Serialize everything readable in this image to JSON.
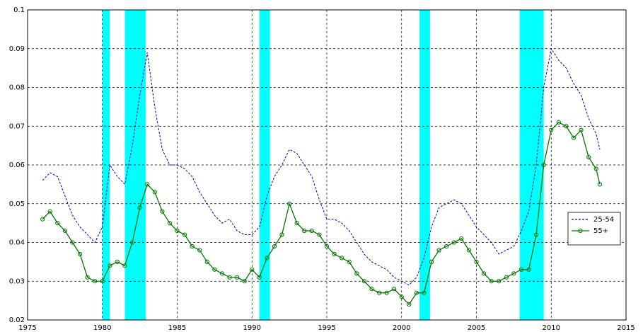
{
  "chart_data": {
    "type": "line",
    "x": [
      1976,
      1976.5,
      1977,
      1977.5,
      1978,
      1978.5,
      1979,
      1979.5,
      1980,
      1980.5,
      1981,
      1981.5,
      1982,
      1982.5,
      1983,
      1983.5,
      1984,
      1984.5,
      1985,
      1985.5,
      1986,
      1986.5,
      1987,
      1987.5,
      1988,
      1988.5,
      1989,
      1989.5,
      1990,
      1990.5,
      1991,
      1991.5,
      1992,
      1992.5,
      1993,
      1993.5,
      1994,
      1994.5,
      1995,
      1995.5,
      1996,
      1996.5,
      1997,
      1997.5,
      1998,
      1998.5,
      1999,
      1999.5,
      2000,
      2000.5,
      2001,
      2001.5,
      2002,
      2002.5,
      2003,
      2003.5,
      2004,
      2004.5,
      2005,
      2005.5,
      2006,
      2006.5,
      2007,
      2007.5,
      2008,
      2008.5,
      2009,
      2009.5,
      2010,
      2010.5,
      2011,
      2011.5,
      2012,
      2012.5,
      2013,
      2013.25
    ],
    "series": [
      {
        "name": "25-54",
        "color": "#0000cc",
        "style": "dashed",
        "marker": false,
        "values": [
          0.056,
          0.058,
          0.057,
          0.052,
          0.047,
          0.044,
          0.042,
          0.04,
          0.044,
          0.06,
          0.057,
          0.055,
          0.065,
          0.078,
          0.089,
          0.075,
          0.064,
          0.06,
          0.06,
          0.059,
          0.057,
          0.053,
          0.05,
          0.047,
          0.045,
          0.046,
          0.043,
          0.042,
          0.042,
          0.044,
          0.052,
          0.057,
          0.06,
          0.064,
          0.063,
          0.06,
          0.057,
          0.051,
          0.046,
          0.046,
          0.045,
          0.043,
          0.04,
          0.037,
          0.035,
          0.034,
          0.033,
          0.031,
          0.03,
          0.029,
          0.031,
          0.036,
          0.044,
          0.049,
          0.05,
          0.051,
          0.05,
          0.047,
          0.044,
          0.042,
          0.04,
          0.037,
          0.038,
          0.039,
          0.043,
          0.048,
          0.06,
          0.08,
          0.09,
          0.087,
          0.085,
          0.081,
          0.078,
          0.072,
          0.068,
          0.064
        ]
      },
      {
        "name": "55+",
        "color": "#007700",
        "style": "solid",
        "marker": true,
        "values": [
          0.046,
          0.048,
          0.045,
          0.043,
          0.04,
          0.037,
          0.031,
          0.03,
          0.03,
          0.034,
          0.035,
          0.034,
          0.04,
          0.049,
          0.055,
          0.053,
          0.048,
          0.045,
          0.043,
          0.042,
          0.039,
          0.038,
          0.035,
          0.033,
          0.032,
          0.031,
          0.031,
          0.03,
          0.033,
          0.031,
          0.036,
          0.039,
          0.042,
          0.05,
          0.045,
          0.043,
          0.043,
          0.042,
          0.039,
          0.037,
          0.036,
          0.035,
          0.032,
          0.03,
          0.028,
          0.027,
          0.027,
          0.028,
          0.026,
          0.024,
          0.027,
          0.027,
          0.035,
          0.038,
          0.039,
          0.04,
          0.041,
          0.038,
          0.035,
          0.032,
          0.03,
          0.03,
          0.031,
          0.032,
          0.033,
          0.033,
          0.042,
          0.06,
          0.069,
          0.071,
          0.07,
          0.067,
          0.069,
          0.062,
          0.059,
          0.055
        ]
      }
    ],
    "recessions": [
      [
        1980.0,
        1980.5
      ],
      [
        1981.5,
        1982.9
      ],
      [
        1990.5,
        1991.2
      ],
      [
        2001.2,
        2001.9
      ],
      [
        2007.9,
        2009.5
      ]
    ],
    "recession_color": "#00ffff",
    "xlim": [
      1975,
      2015
    ],
    "xticks": [
      1975,
      1980,
      1985,
      1990,
      1995,
      2000,
      2005,
      2010,
      2015
    ],
    "ylim": [
      0.02,
      0.1
    ],
    "yticks": [
      0.02,
      0.03,
      0.04,
      0.05,
      0.06,
      0.07,
      0.08,
      0.09,
      0.1
    ],
    "grid": true,
    "legend": "right"
  }
}
